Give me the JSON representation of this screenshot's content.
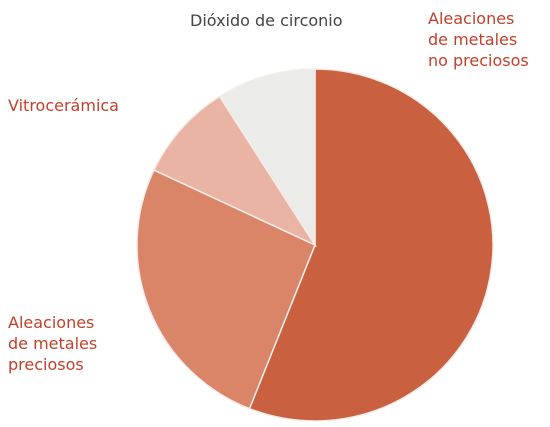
{
  "chart_data": {
    "type": "pie",
    "categories": [
      "Aleaciones\nde metales\nno preciosos",
      "Aleaciones\nde metales\npreciosos",
      "Vitrocerámica",
      "Dióxido de circonio"
    ],
    "values": [
      56,
      26,
      9,
      9
    ],
    "colors": [
      "#c9603f",
      "#da8468",
      "#e9b4a3",
      "#ebebea"
    ]
  }
}
